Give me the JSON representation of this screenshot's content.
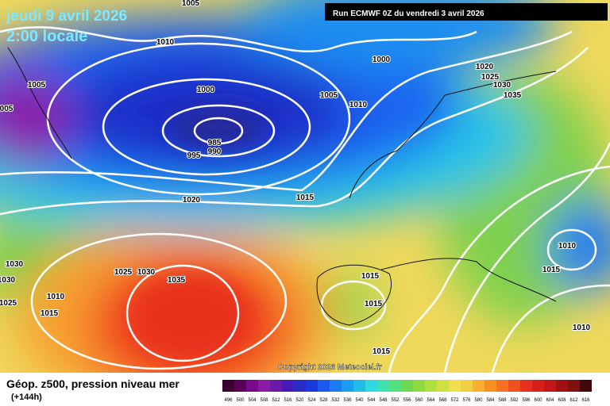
{
  "header": {
    "date": "jeudi 9 avril 2026",
    "time": "2:00 locale",
    "run": "Run ECMWF 0Z du vendredi 3 avril 2026"
  },
  "copyright": "Copyright 2026 Meteociel.fr",
  "footer": {
    "title": "Géop. z500, pression niveau mer",
    "lead": "(+144h)"
  },
  "scale": [
    496,
    500,
    504,
    508,
    512,
    516,
    520,
    524,
    528,
    532,
    536,
    540,
    544,
    548,
    552,
    556,
    560,
    564,
    568,
    572,
    576,
    580,
    584,
    588,
    592,
    596,
    600,
    604,
    608,
    612,
    616
  ],
  "isobar_labels": [
    1005,
    1010,
    1000,
    1005,
    1000,
    1005,
    1010,
    "005",
    985,
    990,
    995,
    1020,
    1015,
    1020,
    1025,
    1030,
    1035,
    1010,
    1015,
    1030,
    1030,
    1025,
    1030,
    1035,
    1010,
    1025,
    1015,
    1015,
    1015,
    1015,
    1010
  ]
}
